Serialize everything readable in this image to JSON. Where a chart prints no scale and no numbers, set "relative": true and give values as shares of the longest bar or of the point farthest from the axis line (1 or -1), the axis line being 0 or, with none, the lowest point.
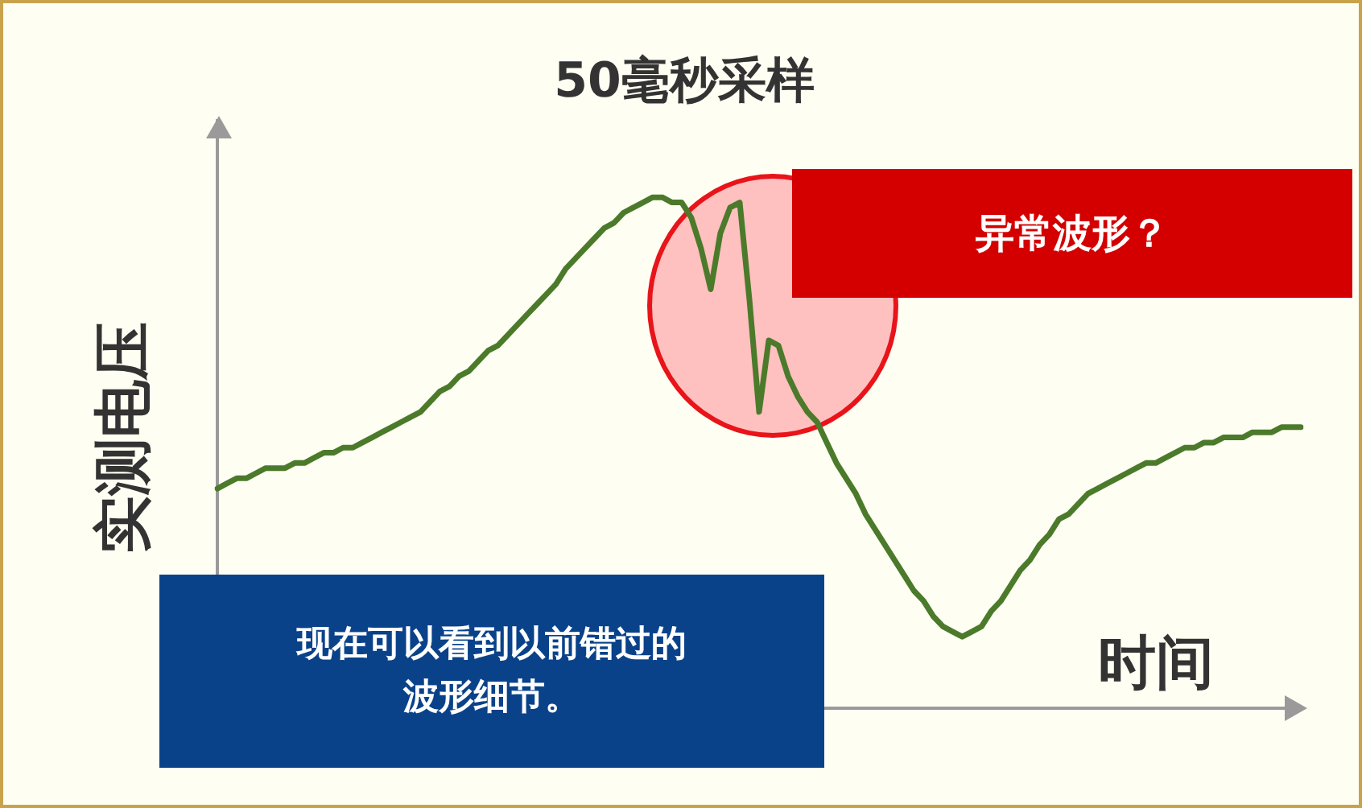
{
  "chart_data": {
    "type": "line",
    "title": "50毫秒采样",
    "xlabel": "时间",
    "ylabel": "实测电压",
    "relative": true,
    "legend": false,
    "marker": "none",
    "annotations": [
      "异常波形？",
      "现在可以看到以前错过的波形细节。"
    ],
    "categories": [
      null,
      null,
      null,
      null,
      null,
      null,
      null,
      null,
      null,
      null,
      null,
      null,
      null,
      null,
      null,
      null,
      null,
      null,
      null,
      null,
      null,
      null,
      null,
      null,
      null,
      null,
      null,
      null,
      null,
      null,
      null,
      null,
      null,
      null,
      null,
      null,
      null,
      null,
      null,
      null,
      null,
      null,
      null,
      null,
      null,
      null,
      null,
      null,
      null,
      null,
      null,
      null,
      null,
      null,
      null,
      null,
      null,
      null,
      null,
      null,
      null,
      null,
      null,
      null,
      null,
      null,
      null,
      null,
      null,
      null,
      null,
      null,
      null,
      null,
      null,
      null,
      null,
      null,
      null,
      null,
      null,
      null,
      null,
      null,
      null,
      null,
      null,
      null,
      null,
      null,
      null,
      null,
      null,
      null,
      null,
      null,
      null,
      null,
      null,
      null,
      null,
      null,
      null,
      null,
      null,
      null,
      null,
      null,
      null,
      null,
      null,
      null,
      null
    ],
    "series": [
      {
        "color": "#4b7a2b",
        "values": [
          0.43,
          0.44,
          0.45,
          0.45,
          0.46,
          0.47,
          0.47,
          0.47,
          0.48,
          0.48,
          0.49,
          0.5,
          0.5,
          0.51,
          0.51,
          0.52,
          0.53,
          0.54,
          0.55,
          0.56,
          0.57,
          0.58,
          0.6,
          0.62,
          0.63,
          0.65,
          0.66,
          0.68,
          0.7,
          0.71,
          0.73,
          0.75,
          0.77,
          0.79,
          0.81,
          0.83,
          0.86,
          0.88,
          0.9,
          0.92,
          0.94,
          0.95,
          0.97,
          0.98,
          0.99,
          1,
          1,
          0.99,
          0.99,
          0.96,
          0.9,
          0.82,
          0.93,
          0.98,
          0.99,
          0.8,
          0.58,
          0.72,
          0.71,
          0.65,
          0.61,
          0.58,
          0.56,
          0.52,
          0.48,
          0.45,
          0.42,
          0.38,
          0.35,
          0.32,
          0.29,
          0.26,
          0.23,
          0.21,
          0.18,
          0.16,
          0.15,
          0.14,
          0.15,
          0.16,
          0.19,
          0.21,
          0.24,
          0.27,
          0.29,
          0.32,
          0.34,
          0.37,
          0.38,
          0.4,
          0.42,
          0.43,
          0.44,
          0.45,
          0.46,
          0.47,
          0.48,
          0.48,
          0.49,
          0.5,
          0.51,
          0.51,
          0.52,
          0.52,
          0.53,
          0.53,
          0.53,
          0.54,
          0.54,
          0.54,
          0.55,
          0.55,
          0.55
        ]
      }
    ]
  }
}
